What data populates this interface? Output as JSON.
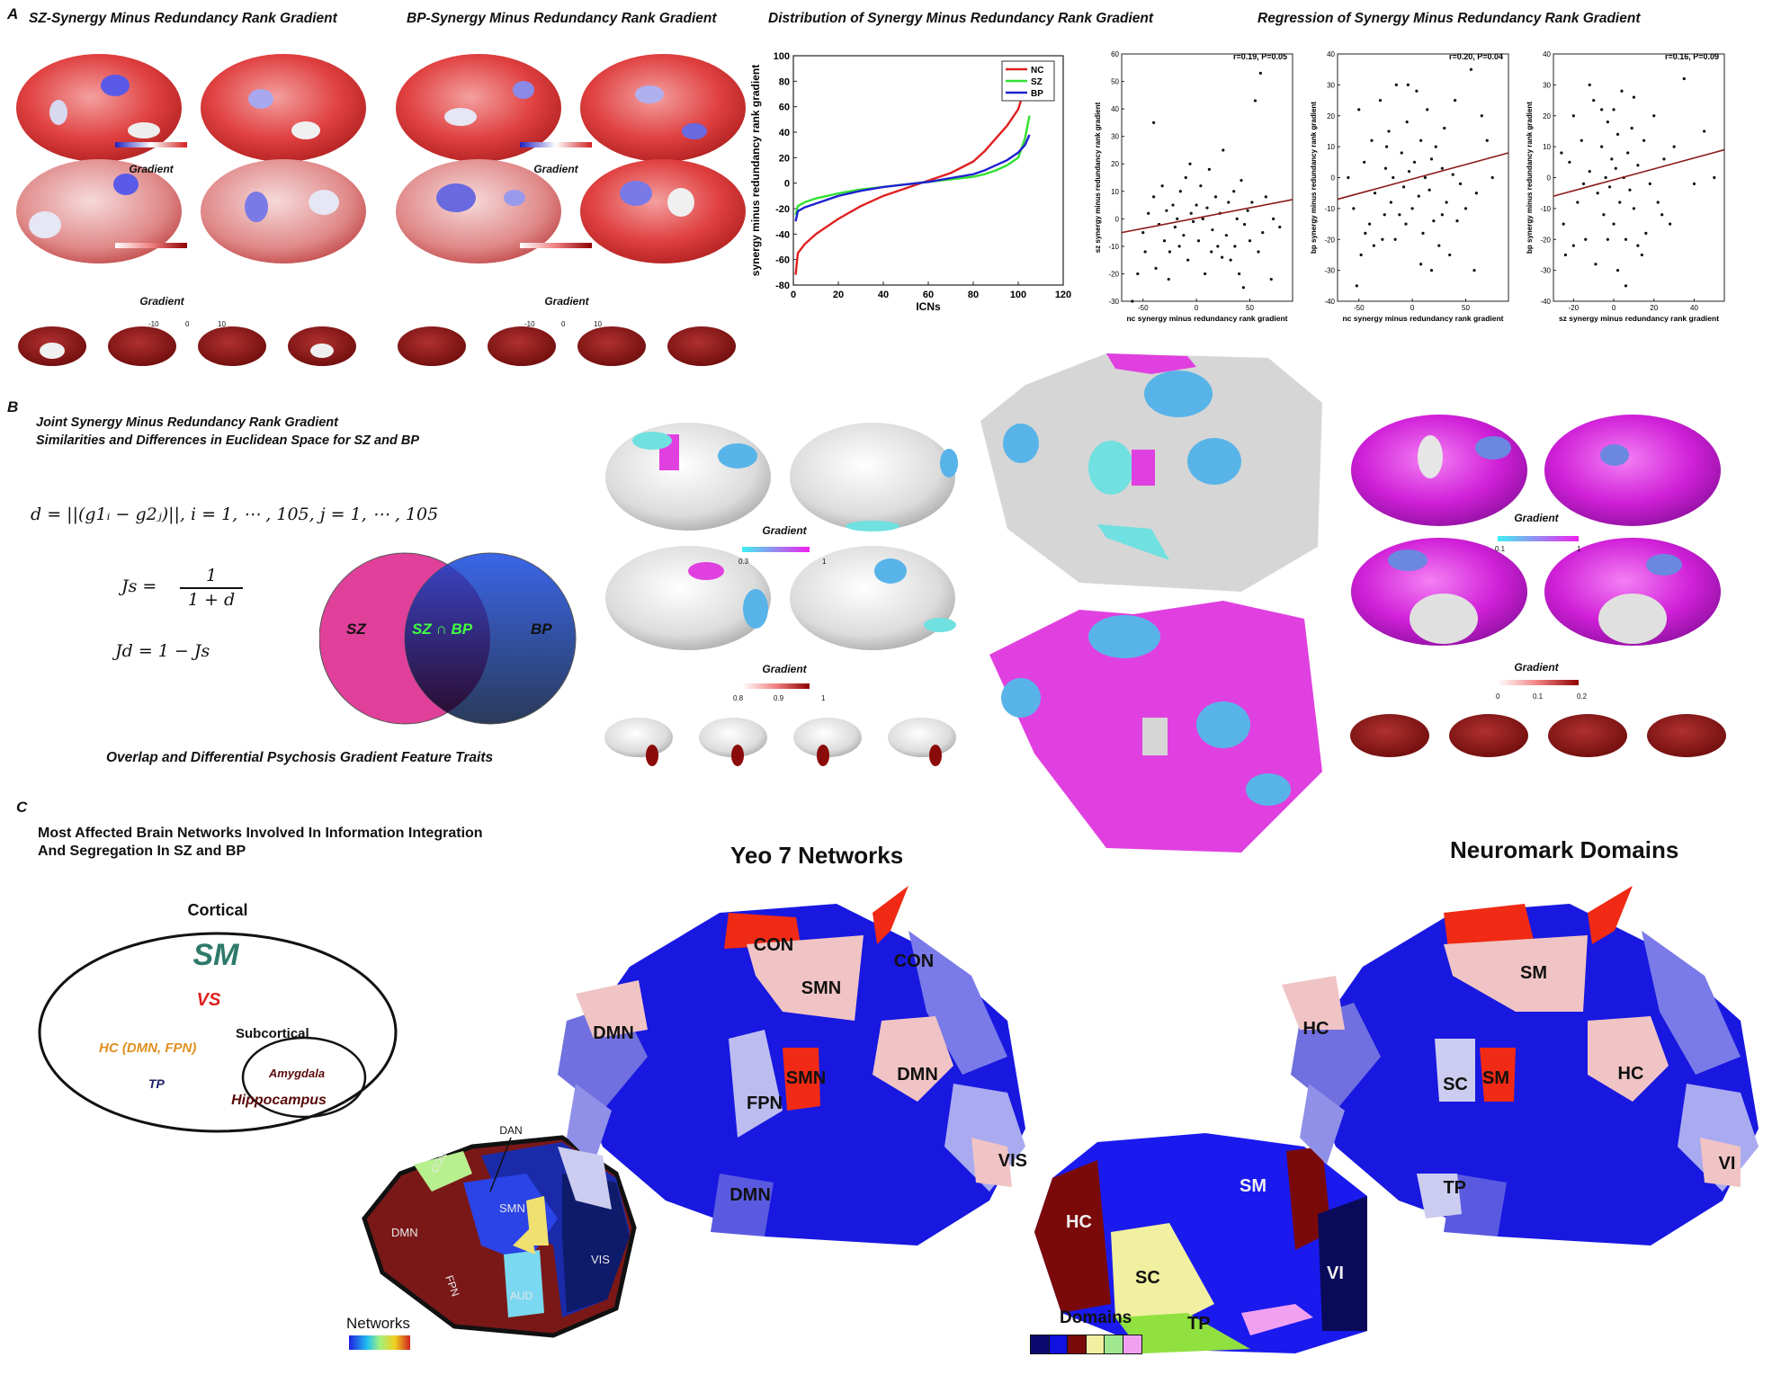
{
  "panel_a": {
    "label": "A",
    "sz_title": "SZ-Synergy  Minus Redundancy Rank  Gradient",
    "bp_title": "BP-Synergy  Minus Redundancy Rank  Gradient",
    "dist_title": "Distribution of Synergy Minus Redundancy Rank Gradient",
    "reg_title": "Regression of Synergy Minus Redundancy Rank Gradient",
    "gradient_label": "Gradient",
    "cbar_ticks": [
      "-10",
      "0",
      "10"
    ]
  },
  "panel_b": {
    "label": "B",
    "title_line1": "Joint Synergy Minus Redundancy Rank Gradient",
    "title_line2": "Similarities and Differences in Euclidean Space for SZ and BP",
    "eq_d": "d = ||(g1ᵢ − g2ⱼ)||, i = 1, ⋯ , 105, j = 1, ⋯ , 105",
    "eq_js_left": "Js =",
    "eq_js_num": "1",
    "eq_js_den": "1 + d",
    "eq_jd": "Jd = 1 − Js",
    "venn_left": "SZ",
    "venn_center": "SZ ∩ BP",
    "venn_right": "BP",
    "caption": "Overlap and Differential Psychosis Gradient Feature Traits",
    "gradient_label": "Gradient",
    "cbar1_ticks": [
      "0.3",
      "1"
    ],
    "cbar2_ticks": [
      "0.8",
      "0.9",
      "1"
    ],
    "cbar3_ticks": [
      "0.1",
      "1"
    ],
    "cbar4_ticks": [
      "0",
      "0.1",
      "0.2"
    ]
  },
  "panel_c": {
    "label": "C",
    "title_line1": "Most Affected Brain Networks Involved In Information Integration",
    "title_line2": "And Segregation In SZ and BP",
    "cortical": "Cortical",
    "sm": "SM",
    "vs": "VS",
    "hc": "HC (DMN, FPN)",
    "subcortical": "Subcortical",
    "tp": "TP",
    "amygdala": "Amygdala",
    "hippocampus": "Hippocampus",
    "yeo_title": "Yeo 7 Networks",
    "neuromark_title": "Neuromark Domains",
    "yeo_labels": [
      "CON",
      "CON",
      "SMN",
      "DMN",
      "SMN",
      "FPN",
      "DMN",
      "DMN",
      "VIS"
    ],
    "neuromark_labels": [
      "SM",
      "HC",
      "SC",
      "SM",
      "HC",
      "TP",
      "VI"
    ],
    "networks_ref_labels": [
      "DAN",
      "CON",
      "SMN",
      "DMN",
      "FPN",
      "AUD",
      "VIS"
    ],
    "networks_legend": "Networks",
    "domains_ref_labels": [
      "SM",
      "HC",
      "SC",
      "VI",
      "TP"
    ],
    "domains_legend": "Domains",
    "domain_colors": [
      "#0a0a6e",
      "#1010e0",
      "#7a0a0a",
      "#f0f0a0",
      "#a0e890",
      "#f0a0f0"
    ]
  },
  "chart_data": [
    {
      "type": "line",
      "title": "Distribution of Synergy Minus Redundancy Rank Gradient",
      "xlabel": "ICNs",
      "ylabel": "synergy minus redundancy rank gradient",
      "xlim": [
        0,
        120
      ],
      "ylim": [
        -80,
        100
      ],
      "xticks": [
        0,
        20,
        40,
        60,
        80,
        100,
        120
      ],
      "yticks": [
        -80,
        -60,
        -40,
        -20,
        0,
        20,
        40,
        60,
        80,
        100
      ],
      "legend_position": "top-right",
      "series": [
        {
          "name": "NC",
          "color": "#e02020",
          "x": [
            1,
            2,
            5,
            10,
            20,
            30,
            40,
            50,
            60,
            70,
            80,
            85,
            90,
            95,
            100,
            103,
            105
          ],
          "y": [
            -72,
            -55,
            -48,
            -40,
            -28,
            -18,
            -10,
            -4,
            2,
            8,
            17,
            25,
            35,
            45,
            58,
            75,
            90
          ]
        },
        {
          "name": "SZ",
          "color": "#30e030",
          "x": [
            1,
            2,
            5,
            10,
            20,
            30,
            40,
            50,
            60,
            70,
            80,
            85,
            90,
            95,
            100,
            103,
            105
          ],
          "y": [
            -25,
            -18,
            -15,
            -12,
            -8,
            -5,
            -3,
            -1,
            1,
            3,
            5,
            7,
            10,
            14,
            20,
            35,
            53
          ]
        },
        {
          "name": "BP",
          "color": "#2020d0",
          "x": [
            1,
            2,
            5,
            10,
            20,
            30,
            40,
            50,
            60,
            70,
            80,
            85,
            90,
            95,
            100,
            103,
            105
          ],
          "y": [
            -30,
            -22,
            -19,
            -16,
            -10,
            -6,
            -3,
            -1,
            1,
            4,
            7,
            10,
            14,
            18,
            24,
            30,
            38
          ]
        }
      ]
    },
    {
      "type": "scatter",
      "annotation": "r=0.19, P=0.05",
      "xlabel": "nc synergy minus redundancy rank gradient",
      "ylabel": "sz synergy minus redundancy rank gradient",
      "xlim": [
        -70,
        90
      ],
      "ylim": [
        -30,
        60
      ],
      "xticks": [
        -50,
        0,
        50
      ],
      "yticks": [
        -30,
        -20,
        -10,
        0,
        10,
        20,
        30,
        40,
        50,
        60
      ],
      "fit": {
        "x": [
          -70,
          90
        ],
        "y": [
          -5,
          7
        ],
        "color": "#8b1a1a"
      },
      "points": [
        [
          -50,
          -5
        ],
        [
          -45,
          2
        ],
        [
          -40,
          8
        ],
        [
          -40,
          35
        ],
        [
          -35,
          -2
        ],
        [
          -30,
          -8
        ],
        [
          -28,
          3
        ],
        [
          -25,
          -12
        ],
        [
          -22,
          5
        ],
        [
          -20,
          -3
        ],
        [
          -18,
          0
        ],
        [
          -15,
          10
        ],
        [
          -12,
          -6
        ],
        [
          -10,
          15
        ],
        [
          -8,
          -15
        ],
        [
          -5,
          2
        ],
        [
          -3,
          -1
        ],
        [
          0,
          5
        ],
        [
          2,
          -8
        ],
        [
          4,
          12
        ],
        [
          6,
          0
        ],
        [
          8,
          -20
        ],
        [
          10,
          4
        ],
        [
          12,
          18
        ],
        [
          15,
          -4
        ],
        [
          18,
          8
        ],
        [
          20,
          -10
        ],
        [
          22,
          2
        ],
        [
          25,
          25
        ],
        [
          28,
          -6
        ],
        [
          30,
          6
        ],
        [
          32,
          -15
        ],
        [
          35,
          10
        ],
        [
          38,
          0
        ],
        [
          40,
          -20
        ],
        [
          42,
          14
        ],
        [
          45,
          -2
        ],
        [
          48,
          3
        ],
        [
          50,
          -8
        ],
        [
          55,
          43
        ],
        [
          60,
          53
        ],
        [
          62,
          -5
        ],
        [
          65,
          8
        ],
        [
          70,
          -22
        ],
        [
          72,
          0
        ],
        [
          -60,
          -30
        ],
        [
          -55,
          -20
        ],
        [
          -48,
          -12
        ],
        [
          -38,
          -18
        ],
        [
          -32,
          12
        ],
        [
          -26,
          -22
        ],
        [
          -16,
          -10
        ],
        [
          -6,
          20
        ],
        [
          14,
          -12
        ],
        [
          24,
          -14
        ],
        [
          36,
          -10
        ],
        [
          44,
          -25
        ],
        [
          52,
          6
        ],
        [
          58,
          -12
        ],
        [
          78,
          -3
        ]
      ]
    },
    {
      "type": "scatter",
      "annotation": "r=0.20, P=0.04",
      "xlabel": "nc synergy minus redundancy rank gradient",
      "ylabel": "bp synergy minus redundancy rank gradient",
      "xlim": [
        -70,
        90
      ],
      "ylim": [
        -40,
        40
      ],
      "xticks": [
        -50,
        0,
        50
      ],
      "yticks": [
        -40,
        -30,
        -20,
        -10,
        0,
        10,
        20,
        30,
        40
      ],
      "fit": {
        "x": [
          -70,
          90
        ],
        "y": [
          -7,
          8
        ],
        "color": "#8b1a1a"
      },
      "points": [
        [
          -60,
          0
        ],
        [
          -55,
          -10
        ],
        [
          -50,
          22
        ],
        [
          -48,
          -25
        ],
        [
          -45,
          5
        ],
        [
          -40,
          -15
        ],
        [
          -38,
          12
        ],
        [
          -35,
          -5
        ],
        [
          -30,
          25
        ],
        [
          -28,
          -20
        ],
        [
          -25,
          3
        ],
        [
          -22,
          15
        ],
        [
          -20,
          -8
        ],
        [
          -18,
          0
        ],
        [
          -15,
          30
        ],
        [
          -12,
          -12
        ],
        [
          -10,
          8
        ],
        [
          -8,
          -3
        ],
        [
          -5,
          18
        ],
        [
          -3,
          2
        ],
        [
          0,
          -10
        ],
        [
          2,
          5
        ],
        [
          4,
          28
        ],
        [
          6,
          -6
        ],
        [
          8,
          12
        ],
        [
          10,
          -18
        ],
        [
          12,
          0
        ],
        [
          14,
          22
        ],
        [
          16,
          -4
        ],
        [
          18,
          6
        ],
        [
          20,
          -14
        ],
        [
          22,
          10
        ],
        [
          25,
          -22
        ],
        [
          28,
          3
        ],
        [
          30,
          16
        ],
        [
          32,
          -8
        ],
        [
          35,
          -25
        ],
        [
          38,
          1
        ],
        [
          40,
          25
        ],
        [
          45,
          -2
        ],
        [
          50,
          -10
        ],
        [
          55,
          35
        ],
        [
          60,
          -5
        ],
        [
          65,
          20
        ],
        [
          70,
          12
        ],
        [
          -52,
          -35
        ],
        [
          -44,
          -18
        ],
        [
          -36,
          -22
        ],
        [
          -26,
          -12
        ],
        [
          -16,
          -20
        ],
        [
          -6,
          -15
        ],
        [
          8,
          -28
        ],
        [
          18,
          -30
        ],
        [
          28,
          -12
        ],
        [
          42,
          -14
        ],
        [
          58,
          -30
        ],
        [
          75,
          0
        ],
        [
          -24,
          10
        ],
        [
          -4,
          30
        ]
      ]
    },
    {
      "type": "scatter",
      "annotation": "r=0.16, P=0.09",
      "xlabel": "sz synergy minus redundancy rank gradient",
      "ylabel": "bp synergy minus redundancy rank gradient",
      "xlim": [
        -30,
        55
      ],
      "ylim": [
        -40,
        40
      ],
      "xticks": [
        -20,
        0,
        20,
        40
      ],
      "yticks": [
        -40,
        -30,
        -20,
        -10,
        0,
        10,
        20,
        30,
        40
      ],
      "fit": {
        "x": [
          -30,
          55
        ],
        "y": [
          -6,
          9
        ],
        "color": "#8b1a1a"
      },
      "points": [
        [
          -25,
          -15
        ],
        [
          -22,
          5
        ],
        [
          -20,
          20
        ],
        [
          -18,
          -8
        ],
        [
          -16,
          12
        ],
        [
          -14,
          -20
        ],
        [
          -12,
          2
        ],
        [
          -10,
          25
        ],
        [
          -8,
          -5
        ],
        [
          -6,
          10
        ],
        [
          -5,
          -12
        ],
        [
          -4,
          0
        ],
        [
          -3,
          18
        ],
        [
          -2,
          -3
        ],
        [
          -1,
          6
        ],
        [
          0,
          -15
        ],
        [
          1,
          3
        ],
        [
          2,
          14
        ],
        [
          3,
          -8
        ],
        [
          4,
          28
        ],
        [
          5,
          0
        ],
        [
          6,
          -20
        ],
        [
          7,
          8
        ],
        [
          8,
          -4
        ],
        [
          9,
          16
        ],
        [
          10,
          -10
        ],
        [
          12,
          4
        ],
        [
          14,
          -25
        ],
        [
          15,
          12
        ],
        [
          18,
          -2
        ],
        [
          20,
          20
        ],
        [
          22,
          -8
        ],
        [
          25,
          6
        ],
        [
          28,
          -15
        ],
        [
          30,
          10
        ],
        [
          35,
          32
        ],
        [
          40,
          -2
        ],
        [
          45,
          15
        ],
        [
          50,
          0
        ],
        [
          -24,
          -25
        ],
        [
          -20,
          -22
        ],
        [
          -15,
          -2
        ],
        [
          -12,
          30
        ],
        [
          -9,
          -28
        ],
        [
          -6,
          22
        ],
        [
          -3,
          -20
        ],
        [
          2,
          -30
        ],
        [
          6,
          -35
        ],
        [
          10,
          26
        ],
        [
          16,
          -18
        ],
        [
          24,
          -12
        ],
        [
          -26,
          8
        ],
        [
          0,
          22
        ],
        [
          12,
          -22
        ]
      ]
    }
  ]
}
